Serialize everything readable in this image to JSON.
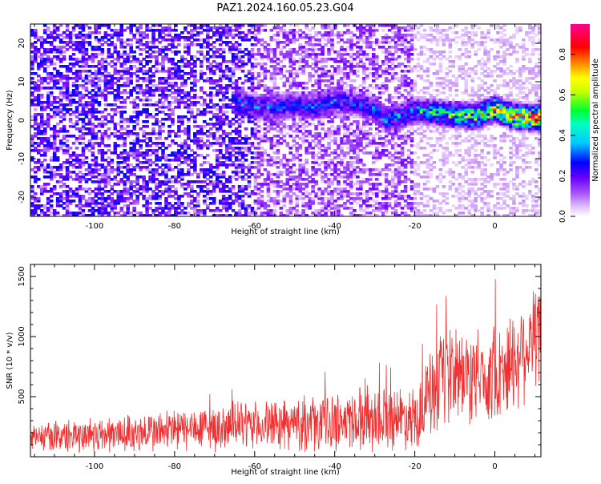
{
  "title": "PAZ1.2024.160.05.23.G04",
  "chart_data": [
    {
      "type": "heatmap",
      "title": "PAZ1.2024.160.05.23.G04",
      "xlabel": "Height of straight line (km)",
      "ylabel": "Frequency (Hz)",
      "xlim": [
        -116,
        11.5
      ],
      "ylim": [
        -25,
        25
      ],
      "xticks": [
        -100,
        -80,
        -60,
        -40,
        -20,
        0
      ],
      "yticks": [
        -20,
        -10,
        0,
        10,
        20
      ],
      "grid": false,
      "colorbar": {
        "label": "Normalized spectral amplitude",
        "range": [
          0,
          0.95
        ],
        "ticks": [
          0.0,
          0.2,
          0.4,
          0.6,
          0.8
        ],
        "colormap": [
          "#ffffff",
          "#e6c8ff",
          "#a855f7",
          "#7000ff",
          "#0000ff",
          "#00c8ff",
          "#00ff40",
          "#ffff00",
          "#ff8000",
          "#ff0000",
          "#ff0090"
        ]
      },
      "ridge": {
        "points": [
          {
            "x": -65,
            "y": 4.5,
            "z": 0.35
          },
          {
            "x": -60,
            "y": 3.5,
            "z": 0.3
          },
          {
            "x": -55,
            "y": 3.5,
            "z": 0.3
          },
          {
            "x": -50,
            "y": 4,
            "z": 0.28
          },
          {
            "x": -45,
            "y": 3.5,
            "z": 0.32
          },
          {
            "x": -40,
            "y": 5,
            "z": 0.3
          },
          {
            "x": -35,
            "y": 4.5,
            "z": 0.28
          },
          {
            "x": -30,
            "y": 3,
            "z": 0.3
          },
          {
            "x": -27,
            "y": 0,
            "z": 0.35
          },
          {
            "x": -20,
            "y": 2.5,
            "z": 0.4
          },
          {
            "x": -15,
            "y": 2,
            "z": 0.45
          },
          {
            "x": -10,
            "y": 1.5,
            "z": 0.55
          },
          {
            "x": -5,
            "y": 1,
            "z": 0.6
          },
          {
            "x": 0,
            "y": 3,
            "z": 0.7
          },
          {
            "x": 5,
            "y": 1,
            "z": 0.8
          },
          {
            "x": 10,
            "y": 0.8,
            "z": 0.9
          }
        ]
      }
    },
    {
      "type": "line",
      "xlabel": "Height of straight line (km)",
      "ylabel": "SNR (10 * v/v)",
      "xlim": [
        -116,
        11.5
      ],
      "ylim": [
        0,
        1600
      ],
      "xticks": [
        -100,
        -80,
        -60,
        -40,
        -20,
        0
      ],
      "yticks": [
        500,
        1000,
        1500
      ],
      "grid": false,
      "line_color": "#f03030",
      "envelope": {
        "x": [
          -116,
          -100,
          -80,
          -60,
          -45,
          -37,
          -34,
          -20,
          -16,
          -10,
          -5,
          0,
          5,
          11.5
        ],
        "mean": [
          160,
          180,
          220,
          260,
          280,
          300,
          330,
          330,
          500,
          700,
          650,
          700,
          800,
          1100
        ],
        "spread": [
          110,
          140,
          170,
          180,
          220,
          230,
          260,
          240,
          380,
          400,
          350,
          380,
          400,
          450
        ]
      }
    }
  ]
}
